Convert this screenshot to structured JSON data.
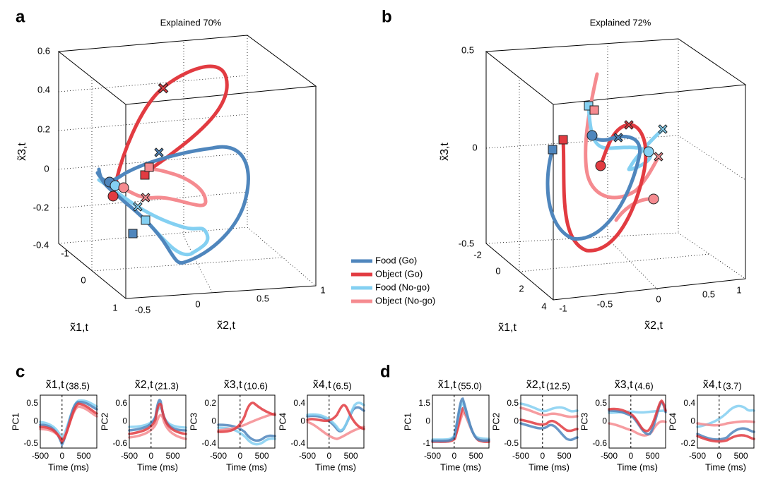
{
  "panel_a": {
    "label": "a",
    "title": "Explained  70%",
    "z_axis_label": "x̃3,t",
    "x1_axis_label": "x̃1,t",
    "x2_axis_label": "x̃2,t",
    "z_ticks": [
      "0.6",
      "0.4",
      "0.2",
      "0",
      "-0.2",
      "-0.4"
    ],
    "x1_ticks": [
      "-1",
      "0",
      "1"
    ],
    "x2_ticks": [
      "-0.5",
      "0",
      "0.5",
      "1"
    ]
  },
  "panel_b": {
    "label": "b",
    "title": "Explained  72%",
    "z_axis_label": "x̃3,t",
    "x1_axis_label": "x̃1,t",
    "x2_axis_label": "x̃2,t",
    "z_ticks": [
      "0.5",
      "0",
      "-0.5"
    ],
    "x1_ticks": [
      "-2",
      "0",
      "2",
      "4"
    ],
    "x2_ticks": [
      "-1",
      "-0.5",
      "0",
      "0.5",
      "1"
    ]
  },
  "legend": [
    {
      "name": "Food (Go)",
      "color": "#4f86bd"
    },
    {
      "name": "Object (Go)",
      "color": "#e23b41"
    },
    {
      "name": "Food (No-go)",
      "color": "#84d0f2"
    },
    {
      "name": "Object (No-go)",
      "color": "#f58b90"
    }
  ],
  "panel_c": {
    "label": "c",
    "plots": [
      {
        "title": "x̃1,t",
        "variance": "(38.5)",
        "y_label": "PC1",
        "y_ticks": [
          "0.5",
          "0",
          "-0.5"
        ],
        "x_ticks": [
          "-500",
          "0",
          "500"
        ],
        "x_label": "Time (ms)"
      },
      {
        "title": "x̃2,t",
        "variance": "(21.3)",
        "y_label": "PC2",
        "y_ticks": [
          "0.6",
          "0",
          "-0.6"
        ],
        "x_ticks": [
          "-500",
          "0",
          "500"
        ],
        "x_label": "Time (ms)"
      },
      {
        "title": "x̃3,t",
        "variance": "(10.6)",
        "y_label": "PC3",
        "y_ticks": [
          "0.2",
          "0",
          "-0.4"
        ],
        "x_ticks": [
          "-500",
          "0",
          "500"
        ],
        "x_label": "Time (ms)"
      },
      {
        "title": "x̃4,t",
        "variance": "(6.5)",
        "y_label": "PC4",
        "y_ticks": [
          "0.4",
          "0",
          "-0.4"
        ],
        "x_ticks": [
          "-500",
          "0",
          "500"
        ],
        "x_label": "Time (ms)"
      }
    ]
  },
  "panel_d": {
    "label": "d",
    "plots": [
      {
        "title": "x̃1,t",
        "variance": "(55.0)",
        "y_label": "PC1",
        "y_ticks": [
          "1.5",
          "0",
          "-1"
        ],
        "x_ticks": [
          "-500",
          "0",
          "500"
        ],
        "x_label": "Time (ms)"
      },
      {
        "title": "x̃2,t",
        "variance": "(12.5)",
        "y_label": "PC2",
        "y_ticks": [
          "0.5",
          "0",
          "-0.5"
        ],
        "x_ticks": [
          "-500",
          "0",
          "500"
        ],
        "x_label": "Time (ms)"
      },
      {
        "title": "x̃3,t",
        "variance": "(4.6)",
        "y_label": "PC3",
        "y_ticks": [
          "0.5",
          "0",
          "-0.6"
        ],
        "x_ticks": [
          "-500",
          "0",
          "500"
        ],
        "x_label": "Time (ms)"
      },
      {
        "title": "x̃4,t",
        "variance": "(3.7)",
        "y_label": "PC4",
        "y_ticks": [
          "0.4",
          "0",
          "-0.2"
        ],
        "x_ticks": [
          "-500",
          "0",
          "500"
        ],
        "x_label": "Time (ms)"
      }
    ]
  }
}
